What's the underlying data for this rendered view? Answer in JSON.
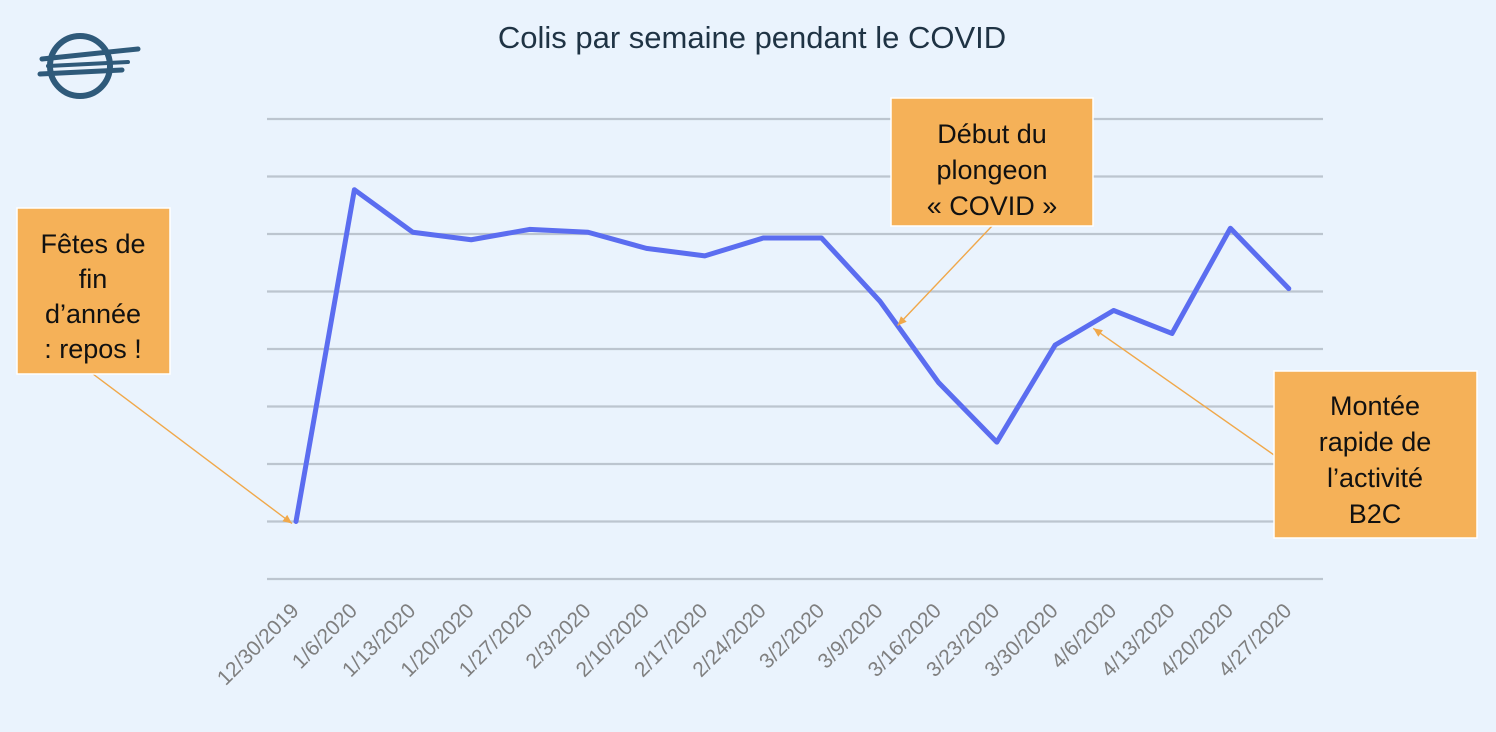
{
  "chart_data": {
    "type": "line",
    "title": "Colis par semaine pendant le COVID",
    "xlabel": "",
    "ylabel": "",
    "grid": true,
    "y_ticks_shown": false,
    "ylim": [
      0,
      8
    ],
    "categories": [
      "12/30/2019",
      "1/6/2020",
      "1/13/2020",
      "1/20/2020",
      "1/27/2020",
      "2/3/2020",
      "2/10/2020",
      "2/17/2020",
      "2/24/2020",
      "3/2/2020",
      "3/9/2020",
      "3/16/2020",
      "3/23/2020",
      "3/30/2020",
      "4/6/2020",
      "4/13/2020",
      "4/20/2020",
      "4/27/2020"
    ],
    "series": [
      {
        "values": [
          1.0,
          6.77,
          6.03,
          5.9,
          6.08,
          6.03,
          5.75,
          5.62,
          5.93,
          5.93,
          4.83,
          3.42,
          2.38,
          4.07,
          4.67,
          4.27,
          6.1,
          5.05
        ]
      }
    ],
    "annotations": [
      {
        "id": "holidays",
        "lines": [
          "Fêtes de",
          "fin",
          "d’année",
          ": repos !"
        ],
        "target_index": 0
      },
      {
        "id": "covid-dip",
        "lines": [
          "Début du",
          "plongeon",
          "« COVID »"
        ],
        "target_index": 10.25
      },
      {
        "id": "b2c-rise",
        "lines": [
          "Montée",
          "rapide de",
          "l’activité",
          "B2C"
        ],
        "target_index": 13.6
      }
    ]
  },
  "colors": {
    "background": "#eaf3fd",
    "series_line": "#5b6df0",
    "annotation_fill": "#f5b158",
    "annotation_leader": "#f0a84a",
    "gridline": "#bcc5cf",
    "tick_text": "#7f7f7f",
    "title_text": "#1f3344",
    "logo": "#2f5a7a"
  },
  "logo": {
    "icon": "speed-circle-logo-icon"
  }
}
